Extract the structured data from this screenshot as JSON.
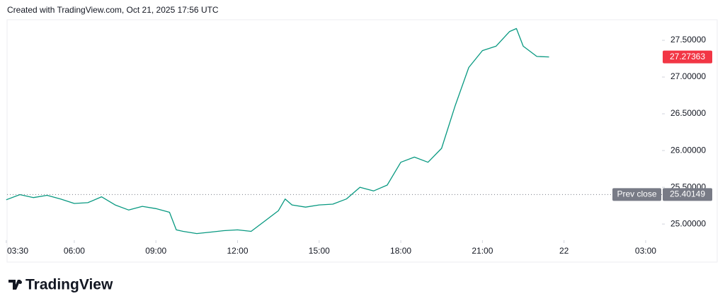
{
  "chart_data": {
    "type": "line",
    "title": "Created with TradingView.com, Oct 21, 2025 17:56 UTC",
    "brand": "TradingView",
    "color": "#089981",
    "x": [
      3.5,
      4.0,
      4.5,
      5.0,
      5.5,
      6.0,
      6.5,
      7.0,
      7.5,
      8.0,
      8.5,
      9.0,
      9.5,
      9.75,
      10.0,
      10.5,
      11.0,
      11.5,
      12.0,
      12.5,
      13.0,
      13.5,
      13.75,
      14.0,
      14.5,
      15.0,
      15.5,
      16.0,
      16.5,
      17.0,
      17.5,
      18.0,
      18.5,
      19.0,
      19.5,
      20.0,
      20.5,
      21.0,
      21.5,
      22.0,
      22.25,
      22.5,
      23.0,
      23.45
    ],
    "values": [
      25.33,
      25.4,
      25.36,
      25.39,
      25.34,
      25.28,
      25.29,
      25.37,
      25.26,
      25.19,
      25.24,
      25.21,
      25.16,
      24.92,
      24.9,
      24.87,
      24.89,
      24.91,
      24.92,
      24.9,
      25.04,
      25.18,
      25.34,
      25.26,
      25.23,
      25.26,
      25.27,
      25.34,
      25.5,
      25.45,
      25.53,
      25.84,
      25.91,
      25.84,
      26.03,
      26.61,
      27.13,
      27.36,
      27.42,
      27.62,
      27.66,
      27.42,
      27.28,
      27.27363
    ],
    "xlim": [
      3.53,
      27.6
    ],
    "xticks": [
      {
        "value": 3.5,
        "label": "03:30"
      },
      {
        "value": 6,
        "label": "06:00"
      },
      {
        "value": 9,
        "label": "09:00"
      },
      {
        "value": 12,
        "label": "12:00"
      },
      {
        "value": 15,
        "label": "15:00"
      },
      {
        "value": 18,
        "label": "18:00"
      },
      {
        "value": 21,
        "label": "21:00"
      },
      {
        "value": 24,
        "label": "22"
      },
      {
        "value": 27,
        "label": "03:00"
      }
    ],
    "ylim": [
      24.78,
      27.76
    ],
    "yticks": [
      {
        "value": 25,
        "label": "25.00000"
      },
      {
        "value": 25.5,
        "label": "25.50000"
      },
      {
        "value": 26,
        "label": "26.00000"
      },
      {
        "value": 26.5,
        "label": "26.50000"
      },
      {
        "value": 27,
        "label": "27.00000"
      },
      {
        "value": 27.5,
        "label": "27.50000"
      }
    ],
    "last_price": 27.27363,
    "last_price_color": "#f23645",
    "prev_close": 25.40149,
    "prev_close_label": "Prev close",
    "prev_close_color": "#787b86"
  }
}
